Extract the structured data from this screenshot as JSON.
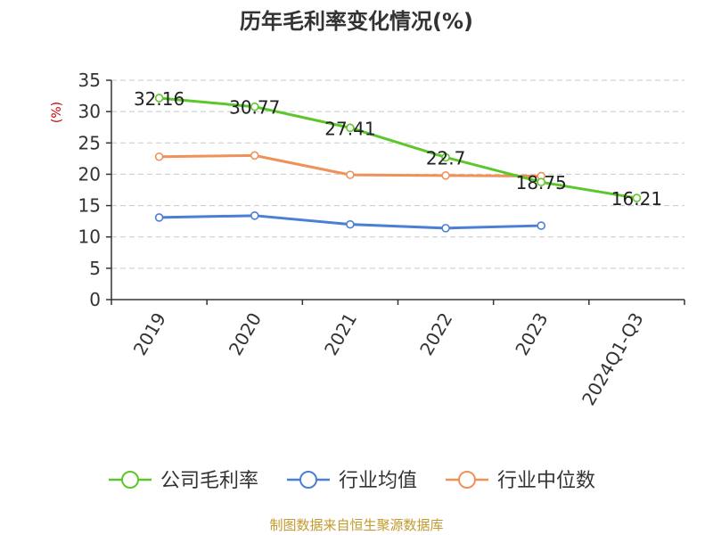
{
  "chart_data": {
    "type": "line",
    "title": "历年毛利率变化情况(%)",
    "ylabel": "(%)",
    "xlabel": "",
    "categories": [
      "2019",
      "2020",
      "2021",
      "2022",
      "2023",
      "2024Q1-Q3"
    ],
    "ylim": [
      0,
      35
    ],
    "yticks": [
      0,
      5,
      10,
      15,
      20,
      25,
      30,
      35
    ],
    "grid": true,
    "legend_position": "bottom",
    "series": [
      {
        "name": "公司毛利率",
        "color": "#5cc72a",
        "values": [
          32.16,
          30.77,
          27.41,
          22.7,
          18.75,
          16.21
        ],
        "labels": [
          "32.16",
          "30.77",
          "27.41",
          "22.7",
          "18.75",
          "16.21"
        ]
      },
      {
        "name": "行业均值",
        "color": "#4b7fd6",
        "values": [
          13.1,
          13.4,
          12.0,
          11.4,
          11.8,
          null
        ]
      },
      {
        "name": "行业中位数",
        "color": "#f0915a",
        "values": [
          22.8,
          23.0,
          19.9,
          19.8,
          19.7,
          null
        ]
      }
    ],
    "source": "制图数据来自恒生聚源数据库"
  }
}
